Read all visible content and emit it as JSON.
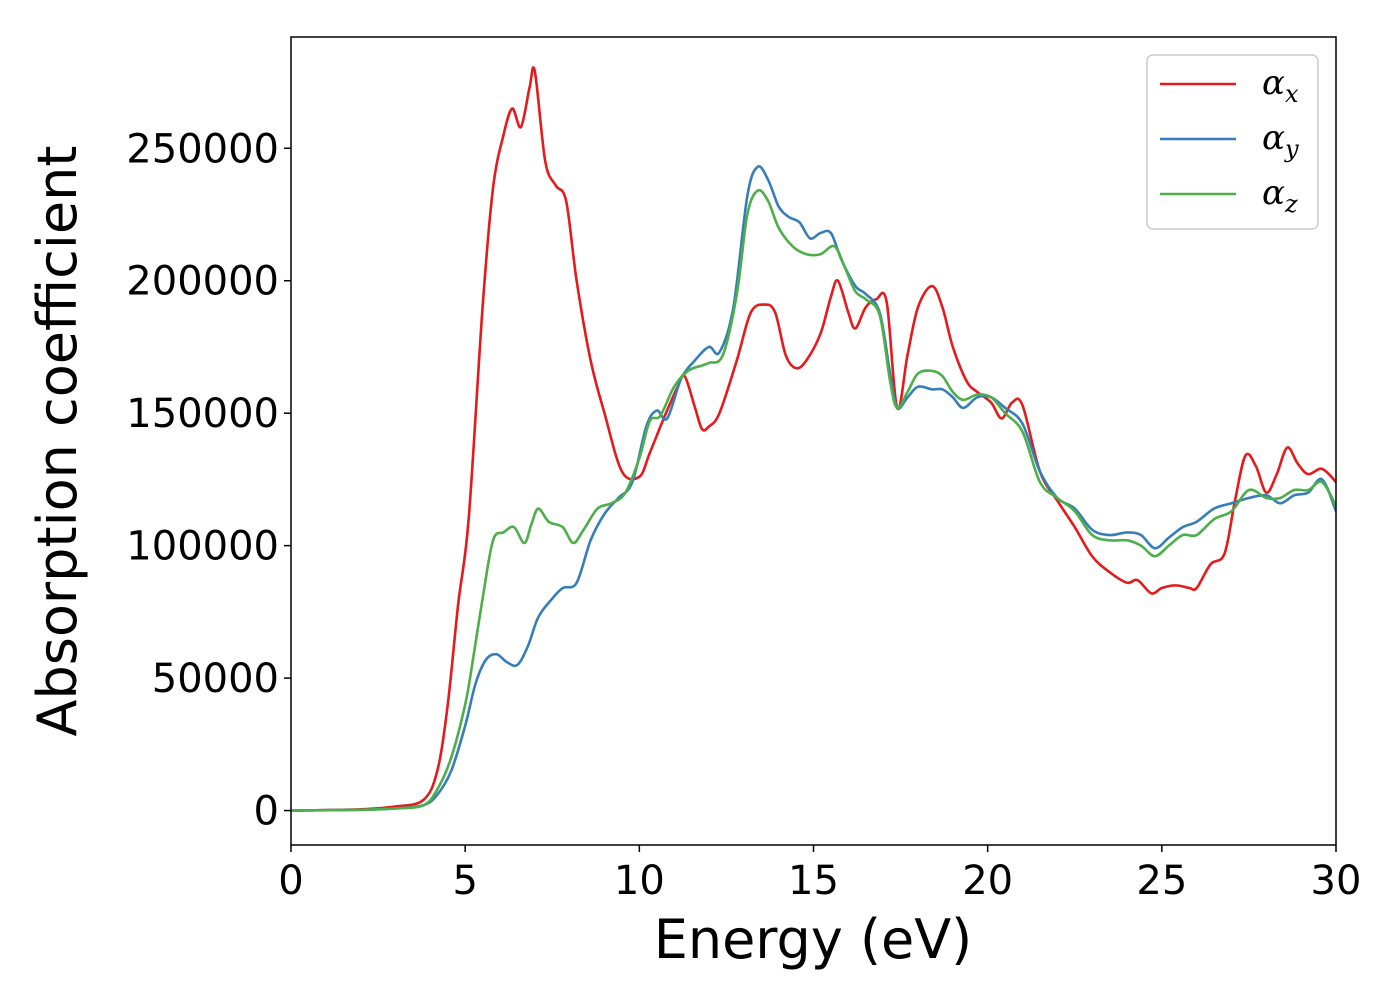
{
  "chart_data": {
    "type": "line",
    "xlabel": "Energy (eV)",
    "ylabel": "Absorption coefficient",
    "xlim": [
      0,
      30
    ],
    "ylim": [
      -13000,
      292000
    ],
    "xticks": [
      0,
      5,
      10,
      15,
      20,
      25,
      30
    ],
    "xtick_labels": [
      "0",
      "5",
      "10",
      "15",
      "20",
      "25",
      "30"
    ],
    "yticks": [
      0,
      50000,
      100000,
      150000,
      200000,
      250000
    ],
    "ytick_labels": [
      "0",
      "50000",
      "100000",
      "150000",
      "200000",
      "250000"
    ],
    "grid": false,
    "legend_position": "top-right",
    "series": [
      {
        "name": "α",
        "name_sub": "x",
        "color": "#e41a1c",
        "points": [
          [
            0,
            0
          ],
          [
            2,
            500
          ],
          [
            3,
            1500
          ],
          [
            3.8,
            4000
          ],
          [
            4.2,
            15000
          ],
          [
            4.5,
            40000
          ],
          [
            4.8,
            78000
          ],
          [
            5.1,
            110000
          ],
          [
            5.5,
            190000
          ],
          [
            5.8,
            235000
          ],
          [
            6.1,
            255000
          ],
          [
            6.35,
            265000
          ],
          [
            6.6,
            258000
          ],
          [
            6.85,
            273000
          ],
          [
            7.0,
            279000
          ],
          [
            7.3,
            245000
          ],
          [
            7.6,
            236000
          ],
          [
            7.9,
            230000
          ],
          [
            8.2,
            200000
          ],
          [
            8.6,
            170000
          ],
          [
            9.0,
            150000
          ],
          [
            9.5,
            128000
          ],
          [
            10.0,
            126000
          ],
          [
            10.3,
            135000
          ],
          [
            10.7,
            148000
          ],
          [
            11.1,
            160000
          ],
          [
            11.3,
            164000
          ],
          [
            11.6,
            152000
          ],
          [
            11.8,
            144000
          ],
          [
            12.0,
            145000
          ],
          [
            12.3,
            150000
          ],
          [
            12.8,
            170000
          ],
          [
            13.2,
            188000
          ],
          [
            13.6,
            191000
          ],
          [
            13.9,
            188000
          ],
          [
            14.2,
            172000
          ],
          [
            14.5,
            167000
          ],
          [
            14.8,
            170000
          ],
          [
            15.2,
            180000
          ],
          [
            15.5,
            194000
          ],
          [
            15.7,
            200000
          ],
          [
            16.0,
            188000
          ],
          [
            16.2,
            182000
          ],
          [
            16.5,
            190000
          ],
          [
            16.8,
            193000
          ],
          [
            17.1,
            192000
          ],
          [
            17.4,
            152000
          ],
          [
            17.7,
            172000
          ],
          [
            18.0,
            190000
          ],
          [
            18.4,
            198000
          ],
          [
            18.7,
            190000
          ],
          [
            19.0,
            175000
          ],
          [
            19.4,
            162000
          ],
          [
            19.7,
            158000
          ],
          [
            20.1,
            154000
          ],
          [
            20.4,
            148000
          ],
          [
            20.7,
            154000
          ],
          [
            21.0,
            153000
          ],
          [
            21.5,
            128000
          ],
          [
            22.0,
            117000
          ],
          [
            22.5,
            107000
          ],
          [
            23.0,
            96000
          ],
          [
            23.5,
            90000
          ],
          [
            24.0,
            86000
          ],
          [
            24.3,
            87000
          ],
          [
            24.7,
            82000
          ],
          [
            25.0,
            84000
          ],
          [
            25.4,
            85000
          ],
          [
            25.8,
            84000
          ],
          [
            26.0,
            84000
          ],
          [
            26.4,
            93000
          ],
          [
            26.8,
            97000
          ],
          [
            27.1,
            117000
          ],
          [
            27.4,
            134000
          ],
          [
            27.7,
            130000
          ],
          [
            28.0,
            120000
          ],
          [
            28.3,
            127000
          ],
          [
            28.6,
            137000
          ],
          [
            28.9,
            131000
          ],
          [
            29.2,
            127000
          ],
          [
            29.6,
            129000
          ],
          [
            30.0,
            124000
          ]
        ]
      },
      {
        "name": "α",
        "name_sub": "y",
        "color": "#377eb8",
        "points": [
          [
            0,
            0
          ],
          [
            2,
            300
          ],
          [
            3,
            800
          ],
          [
            3.8,
            2000
          ],
          [
            4.2,
            6000
          ],
          [
            4.6,
            15000
          ],
          [
            5.0,
            32000
          ],
          [
            5.3,
            48000
          ],
          [
            5.6,
            57000
          ],
          [
            5.9,
            59000
          ],
          [
            6.2,
            56000
          ],
          [
            6.5,
            55000
          ],
          [
            6.8,
            62000
          ],
          [
            7.1,
            73000
          ],
          [
            7.5,
            80000
          ],
          [
            7.8,
            84000
          ],
          [
            8.2,
            86000
          ],
          [
            8.6,
            102000
          ],
          [
            9.0,
            112000
          ],
          [
            9.4,
            118000
          ],
          [
            9.8,
            124000
          ],
          [
            10.2,
            145000
          ],
          [
            10.5,
            151000
          ],
          [
            10.8,
            148000
          ],
          [
            11.2,
            163000
          ],
          [
            11.6,
            170000
          ],
          [
            12.0,
            175000
          ],
          [
            12.3,
            173000
          ],
          [
            12.7,
            190000
          ],
          [
            13.1,
            232000
          ],
          [
            13.4,
            243000
          ],
          [
            13.7,
            238000
          ],
          [
            14.0,
            228000
          ],
          [
            14.3,
            224000
          ],
          [
            14.6,
            222000
          ],
          [
            14.9,
            216000
          ],
          [
            15.2,
            218000
          ],
          [
            15.5,
            218000
          ],
          [
            15.8,
            208000
          ],
          [
            16.2,
            198000
          ],
          [
            16.5,
            195000
          ],
          [
            16.9,
            188000
          ],
          [
            17.2,
            165000
          ],
          [
            17.4,
            152000
          ],
          [
            17.7,
            156000
          ],
          [
            18.0,
            160000
          ],
          [
            18.4,
            159000
          ],
          [
            18.7,
            159000
          ],
          [
            19.0,
            156000
          ],
          [
            19.3,
            152000
          ],
          [
            19.7,
            156000
          ],
          [
            20.1,
            156000
          ],
          [
            20.5,
            152000
          ],
          [
            21.0,
            146000
          ],
          [
            21.5,
            128000
          ],
          [
            22.0,
            118000
          ],
          [
            22.5,
            114000
          ],
          [
            23.0,
            106000
          ],
          [
            23.5,
            104000
          ],
          [
            24.0,
            105000
          ],
          [
            24.4,
            104000
          ],
          [
            24.8,
            99000
          ],
          [
            25.2,
            103000
          ],
          [
            25.6,
            107000
          ],
          [
            26.0,
            109000
          ],
          [
            26.5,
            114000
          ],
          [
            27.0,
            116000
          ],
          [
            27.5,
            118000
          ],
          [
            28.0,
            119000
          ],
          [
            28.4,
            116000
          ],
          [
            28.8,
            119000
          ],
          [
            29.2,
            120000
          ],
          [
            29.6,
            125000
          ],
          [
            30.0,
            113000
          ]
        ]
      },
      {
        "name": "α",
        "name_sub": "z",
        "color": "#4daf4a",
        "points": [
          [
            0,
            0
          ],
          [
            2,
            300
          ],
          [
            3,
            800
          ],
          [
            3.8,
            2000
          ],
          [
            4.2,
            8000
          ],
          [
            4.6,
            20000
          ],
          [
            5.0,
            40000
          ],
          [
            5.2,
            55000
          ],
          [
            5.5,
            80000
          ],
          [
            5.8,
            102000
          ],
          [
            6.1,
            105000
          ],
          [
            6.4,
            107000
          ],
          [
            6.7,
            101000
          ],
          [
            6.9,
            108000
          ],
          [
            7.1,
            114000
          ],
          [
            7.4,
            109000
          ],
          [
            7.8,
            107000
          ],
          [
            8.1,
            101000
          ],
          [
            8.4,
            106000
          ],
          [
            8.8,
            114000
          ],
          [
            9.2,
            116000
          ],
          [
            9.6,
            120000
          ],
          [
            10.0,
            133000
          ],
          [
            10.3,
            147000
          ],
          [
            10.6,
            149000
          ],
          [
            11.0,
            160000
          ],
          [
            11.4,
            166000
          ],
          [
            11.8,
            168000
          ],
          [
            12.0,
            169000
          ],
          [
            12.4,
            172000
          ],
          [
            12.8,
            195000
          ],
          [
            13.1,
            225000
          ],
          [
            13.4,
            234000
          ],
          [
            13.7,
            230000
          ],
          [
            14.0,
            220000
          ],
          [
            14.4,
            213000
          ],
          [
            14.8,
            210000
          ],
          [
            15.2,
            210000
          ],
          [
            15.6,
            213000
          ],
          [
            15.9,
            205000
          ],
          [
            16.2,
            196000
          ],
          [
            16.5,
            193000
          ],
          [
            16.9,
            187000
          ],
          [
            17.2,
            162000
          ],
          [
            17.4,
            152000
          ],
          [
            17.7,
            158000
          ],
          [
            18.0,
            165000
          ],
          [
            18.4,
            166000
          ],
          [
            18.7,
            164000
          ],
          [
            19.0,
            158000
          ],
          [
            19.3,
            155000
          ],
          [
            19.7,
            157000
          ],
          [
            20.1,
            156000
          ],
          [
            20.5,
            150000
          ],
          [
            21.0,
            143000
          ],
          [
            21.5,
            124000
          ],
          [
            22.0,
            118000
          ],
          [
            22.5,
            113000
          ],
          [
            23.0,
            104000
          ],
          [
            23.5,
            102000
          ],
          [
            24.0,
            102000
          ],
          [
            24.4,
            100000
          ],
          [
            24.8,
            96000
          ],
          [
            25.2,
            100000
          ],
          [
            25.6,
            104000
          ],
          [
            26.0,
            104000
          ],
          [
            26.5,
            110000
          ],
          [
            27.0,
            113000
          ],
          [
            27.5,
            121000
          ],
          [
            28.0,
            118000
          ],
          [
            28.4,
            118000
          ],
          [
            28.8,
            121000
          ],
          [
            29.2,
            121000
          ],
          [
            29.6,
            124000
          ],
          [
            30.0,
            115000
          ]
        ]
      }
    ]
  }
}
